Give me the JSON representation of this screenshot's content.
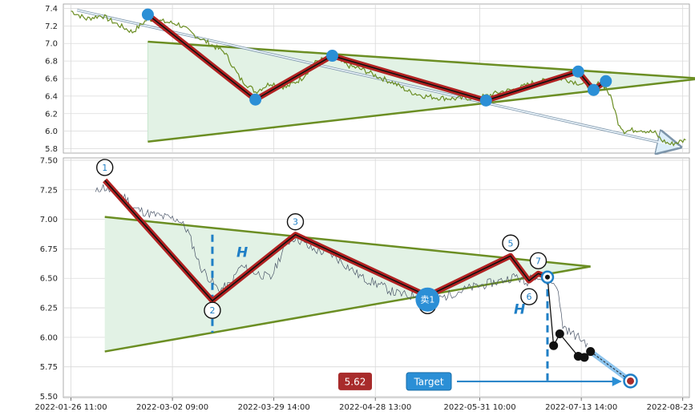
{
  "chart_data": [
    {
      "type": "line",
      "panel": "top",
      "ylim": [
        5.75,
        7.45
      ],
      "yticks": [
        "7.4",
        "7.2",
        "7.0",
        "6.8",
        "6.6",
        "6.4",
        "6.2",
        "6.0",
        "5.8"
      ],
      "grid": true,
      "price_series": [
        [
          0,
          7.37
        ],
        [
          5,
          7.28
        ],
        [
          10,
          7.32
        ],
        [
          15,
          7.22
        ],
        [
          20,
          7.13
        ],
        [
          25,
          7.28
        ],
        [
          30,
          7.25
        ],
        [
          35,
          7.22
        ],
        [
          40,
          7.1
        ],
        [
          45,
          7.0
        ],
        [
          50,
          6.9
        ],
        [
          55,
          6.6
        ],
        [
          60,
          6.45
        ],
        [
          65,
          6.55
        ],
        [
          70,
          6.5
        ],
        [
          75,
          6.6
        ],
        [
          80,
          6.8
        ],
        [
          85,
          6.85
        ],
        [
          90,
          6.75
        ],
        [
          95,
          6.7
        ],
        [
          100,
          6.62
        ],
        [
          105,
          6.55
        ],
        [
          110,
          6.45
        ],
        [
          115,
          6.4
        ],
        [
          120,
          6.38
        ],
        [
          125,
          6.37
        ],
        [
          130,
          6.38
        ],
        [
          135,
          6.4
        ],
        [
          140,
          6.45
        ],
        [
          145,
          6.48
        ],
        [
          150,
          6.55
        ],
        [
          155,
          6.58
        ],
        [
          160,
          6.6
        ],
        [
          165,
          6.55
        ],
        [
          170,
          6.5
        ],
        [
          172,
          6.55
        ],
        [
          174,
          6.5
        ],
        [
          176,
          6.35
        ],
        [
          178,
          6.1
        ],
        [
          180,
          6.0
        ],
        [
          185,
          6.02
        ],
        [
          190,
          5.98
        ],
        [
          192,
          5.9
        ],
        [
          195,
          5.85
        ],
        [
          200,
          5.9
        ]
      ],
      "zigzag": [
        [
          25,
          7.33
        ],
        [
          60,
          6.36
        ],
        [
          85,
          6.86
        ],
        [
          135,
          6.35
        ],
        [
          165,
          6.68
        ],
        [
          170,
          6.47
        ],
        [
          174,
          6.57
        ]
      ],
      "triangle_upper": [
        [
          25,
          7.02
        ],
        [
          205,
          6.6
        ]
      ],
      "triangle_lower": [
        [
          25,
          5.88
        ],
        [
          205,
          6.6
        ]
      ],
      "trend_arrow": [
        [
          2,
          7.38
        ],
        [
          198,
          5.82
        ]
      ]
    },
    {
      "type": "line",
      "panel": "bottom",
      "ylim": [
        5.49,
        7.52
      ],
      "yticks": [
        "7.50",
        "7.25",
        "7.00",
        "6.75",
        "6.50",
        "6.25",
        "6.00",
        "5.75",
        "5.50"
      ],
      "xlim": [
        0,
        200
      ],
      "xticks": [
        {
          "x": 0,
          "label": "2022-01-26 11:00"
        },
        {
          "x": 33,
          "label": "2022-03-02 09:00"
        },
        {
          "x": 66,
          "label": "2022-03-29 14:00"
        },
        {
          "x": 99,
          "label": "2022-04-28 13:00"
        },
        {
          "x": 133,
          "label": "2022-05-31 10:00"
        },
        {
          "x": 166,
          "label": "2022-07-13 14:00"
        },
        {
          "x": 199,
          "label": "2022-08-23 09:00"
        }
      ],
      "grid": true,
      "price_series": [
        [
          8,
          7.22
        ],
        [
          10,
          7.28
        ],
        [
          12,
          7.25
        ],
        [
          15,
          7.22
        ],
        [
          18,
          7.18
        ],
        [
          20,
          7.1
        ],
        [
          25,
          7.05
        ],
        [
          30,
          7.02
        ],
        [
          35,
          7.0
        ],
        [
          38,
          6.9
        ],
        [
          42,
          6.6
        ],
        [
          45,
          6.5
        ],
        [
          48,
          6.4
        ],
        [
          52,
          6.45
        ],
        [
          55,
          6.6
        ],
        [
          60,
          6.55
        ],
        [
          65,
          6.5
        ],
        [
          70,
          6.8
        ],
        [
          73,
          6.85
        ],
        [
          78,
          6.75
        ],
        [
          85,
          6.7
        ],
        [
          90,
          6.6
        ],
        [
          95,
          6.5
        ],
        [
          100,
          6.45
        ],
        [
          105,
          6.38
        ],
        [
          110,
          6.35
        ],
        [
          115,
          6.38
        ],
        [
          120,
          6.33
        ],
        [
          125,
          6.38
        ],
        [
          130,
          6.42
        ],
        [
          135,
          6.45
        ],
        [
          140,
          6.48
        ],
        [
          145,
          6.52
        ],
        [
          148,
          6.45
        ],
        [
          150,
          6.55
        ],
        [
          152,
          6.5
        ],
        [
          155,
          6.48
        ],
        [
          158,
          6.45
        ],
        [
          160,
          6.1
        ],
        [
          162,
          6.05
        ],
        [
          165,
          6.0
        ],
        [
          168,
          5.95
        ]
      ],
      "zigzag": [
        {
          "label": "1",
          "x": 11,
          "y": 7.33
        },
        {
          "label": "2",
          "x": 46,
          "y": 6.31
        },
        {
          "label": "3",
          "x": 73,
          "y": 6.87
        },
        {
          "label": "4",
          "x": 116,
          "y": 6.35
        },
        {
          "label": "5",
          "x": 143,
          "y": 6.69
        },
        {
          "label": "6",
          "x": 149,
          "y": 6.48
        },
        {
          "label": "7",
          "x": 152,
          "y": 6.54
        }
      ],
      "breakout_point": {
        "x": 155,
        "y": 6.51
      },
      "projection_path": [
        [
          155,
          6.51
        ],
        [
          157,
          5.93
        ],
        [
          159,
          6.03
        ],
        [
          165,
          5.84
        ],
        [
          167,
          5.83
        ],
        [
          169,
          5.88
        ],
        [
          182,
          5.63
        ]
      ],
      "triangle_upper": [
        [
          11,
          7.02
        ],
        [
          169,
          6.6
        ]
      ],
      "triangle_lower": [
        [
          11,
          5.88
        ],
        [
          169,
          6.6
        ]
      ],
      "height_marker_x": 46,
      "sell_marker": {
        "label": "卖1",
        "x": 116,
        "y": 6.32
      },
      "h_labels": [
        "H",
        "H"
      ],
      "price_badge": "5.62",
      "target_badge": "Target",
      "target_price": 5.62
    }
  ],
  "colors": {
    "price": "#6b8e23",
    "price_bottom": "#4a5568",
    "zigzag_outer": "#b22222",
    "zigzag_inner": "#111111",
    "triangle": "#6b8e23",
    "triangle_fill": "#e2f2e5",
    "marker_blue": "#2b8fd6",
    "dash_blue": "#1f7fc6",
    "badge_red": "#a82b2b",
    "badge_blue": "#2b8fd6"
  }
}
